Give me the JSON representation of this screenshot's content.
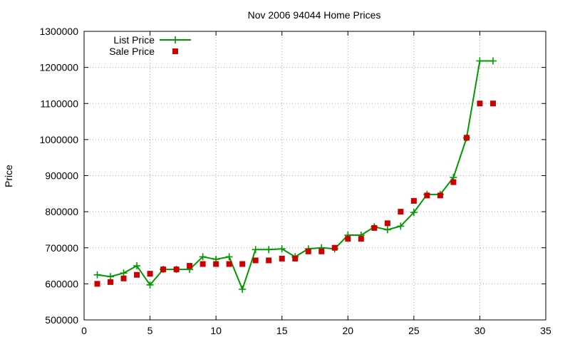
{
  "chart_data": {
    "type": "line",
    "title": "Nov 2006 94044 Home Prices",
    "xlabel": "",
    "ylabel": "Price",
    "xlim": [
      0,
      35
    ],
    "ylim": [
      500000,
      1300000
    ],
    "x_ticks": [
      0,
      5,
      10,
      15,
      20,
      25,
      30,
      35
    ],
    "y_ticks": [
      500000,
      600000,
      700000,
      800000,
      900000,
      1000000,
      1100000,
      1200000,
      1300000
    ],
    "grid": true,
    "legend_position": "top-left",
    "series": [
      {
        "name": "List Price",
        "style": "lines+crosses",
        "color": "#009900",
        "points": [
          [
            1,
            625000
          ],
          [
            2,
            620000
          ],
          [
            3,
            630000
          ],
          [
            4,
            650000
          ],
          [
            5,
            597000
          ],
          [
            6,
            640000
          ],
          [
            7,
            640000
          ],
          [
            8,
            640000
          ],
          [
            9,
            675000
          ],
          [
            10,
            668000
          ],
          [
            11,
            675000
          ],
          [
            12,
            585000
          ],
          [
            13,
            695000
          ],
          [
            14,
            695000
          ],
          [
            15,
            697000
          ],
          [
            16,
            675000
          ],
          [
            17,
            697000
          ],
          [
            18,
            700000
          ],
          [
            19,
            697000
          ],
          [
            20,
            735000
          ],
          [
            21,
            735000
          ],
          [
            22,
            758000
          ],
          [
            23,
            750000
          ],
          [
            24,
            760000
          ],
          [
            25,
            798000
          ],
          [
            26,
            848000
          ],
          [
            27,
            848000
          ],
          [
            28,
            895000
          ],
          [
            29,
            1005000
          ],
          [
            30,
            1218000
          ],
          [
            31,
            1218000
          ]
        ]
      },
      {
        "name": "Sale Price",
        "style": "squares",
        "color": "#cc0000",
        "points": [
          [
            1,
            600000
          ],
          [
            2,
            605000
          ],
          [
            3,
            615000
          ],
          [
            4,
            625000
          ],
          [
            5,
            628000
          ],
          [
            6,
            640000
          ],
          [
            7,
            640000
          ],
          [
            8,
            650000
          ],
          [
            9,
            655000
          ],
          [
            10,
            655000
          ],
          [
            11,
            655000
          ],
          [
            12,
            655000
          ],
          [
            13,
            665000
          ],
          [
            14,
            665000
          ],
          [
            15,
            670000
          ],
          [
            16,
            670000
          ],
          [
            17,
            690000
          ],
          [
            18,
            690000
          ],
          [
            19,
            700000
          ],
          [
            20,
            725000
          ],
          [
            21,
            725000
          ],
          [
            22,
            755000
          ],
          [
            23,
            768000
          ],
          [
            24,
            800000
          ],
          [
            25,
            830000
          ],
          [
            26,
            845000
          ],
          [
            27,
            845000
          ],
          [
            28,
            882000
          ],
          [
            29,
            1005000
          ],
          [
            30,
            1100000
          ],
          [
            31,
            1100000
          ]
        ]
      }
    ]
  }
}
